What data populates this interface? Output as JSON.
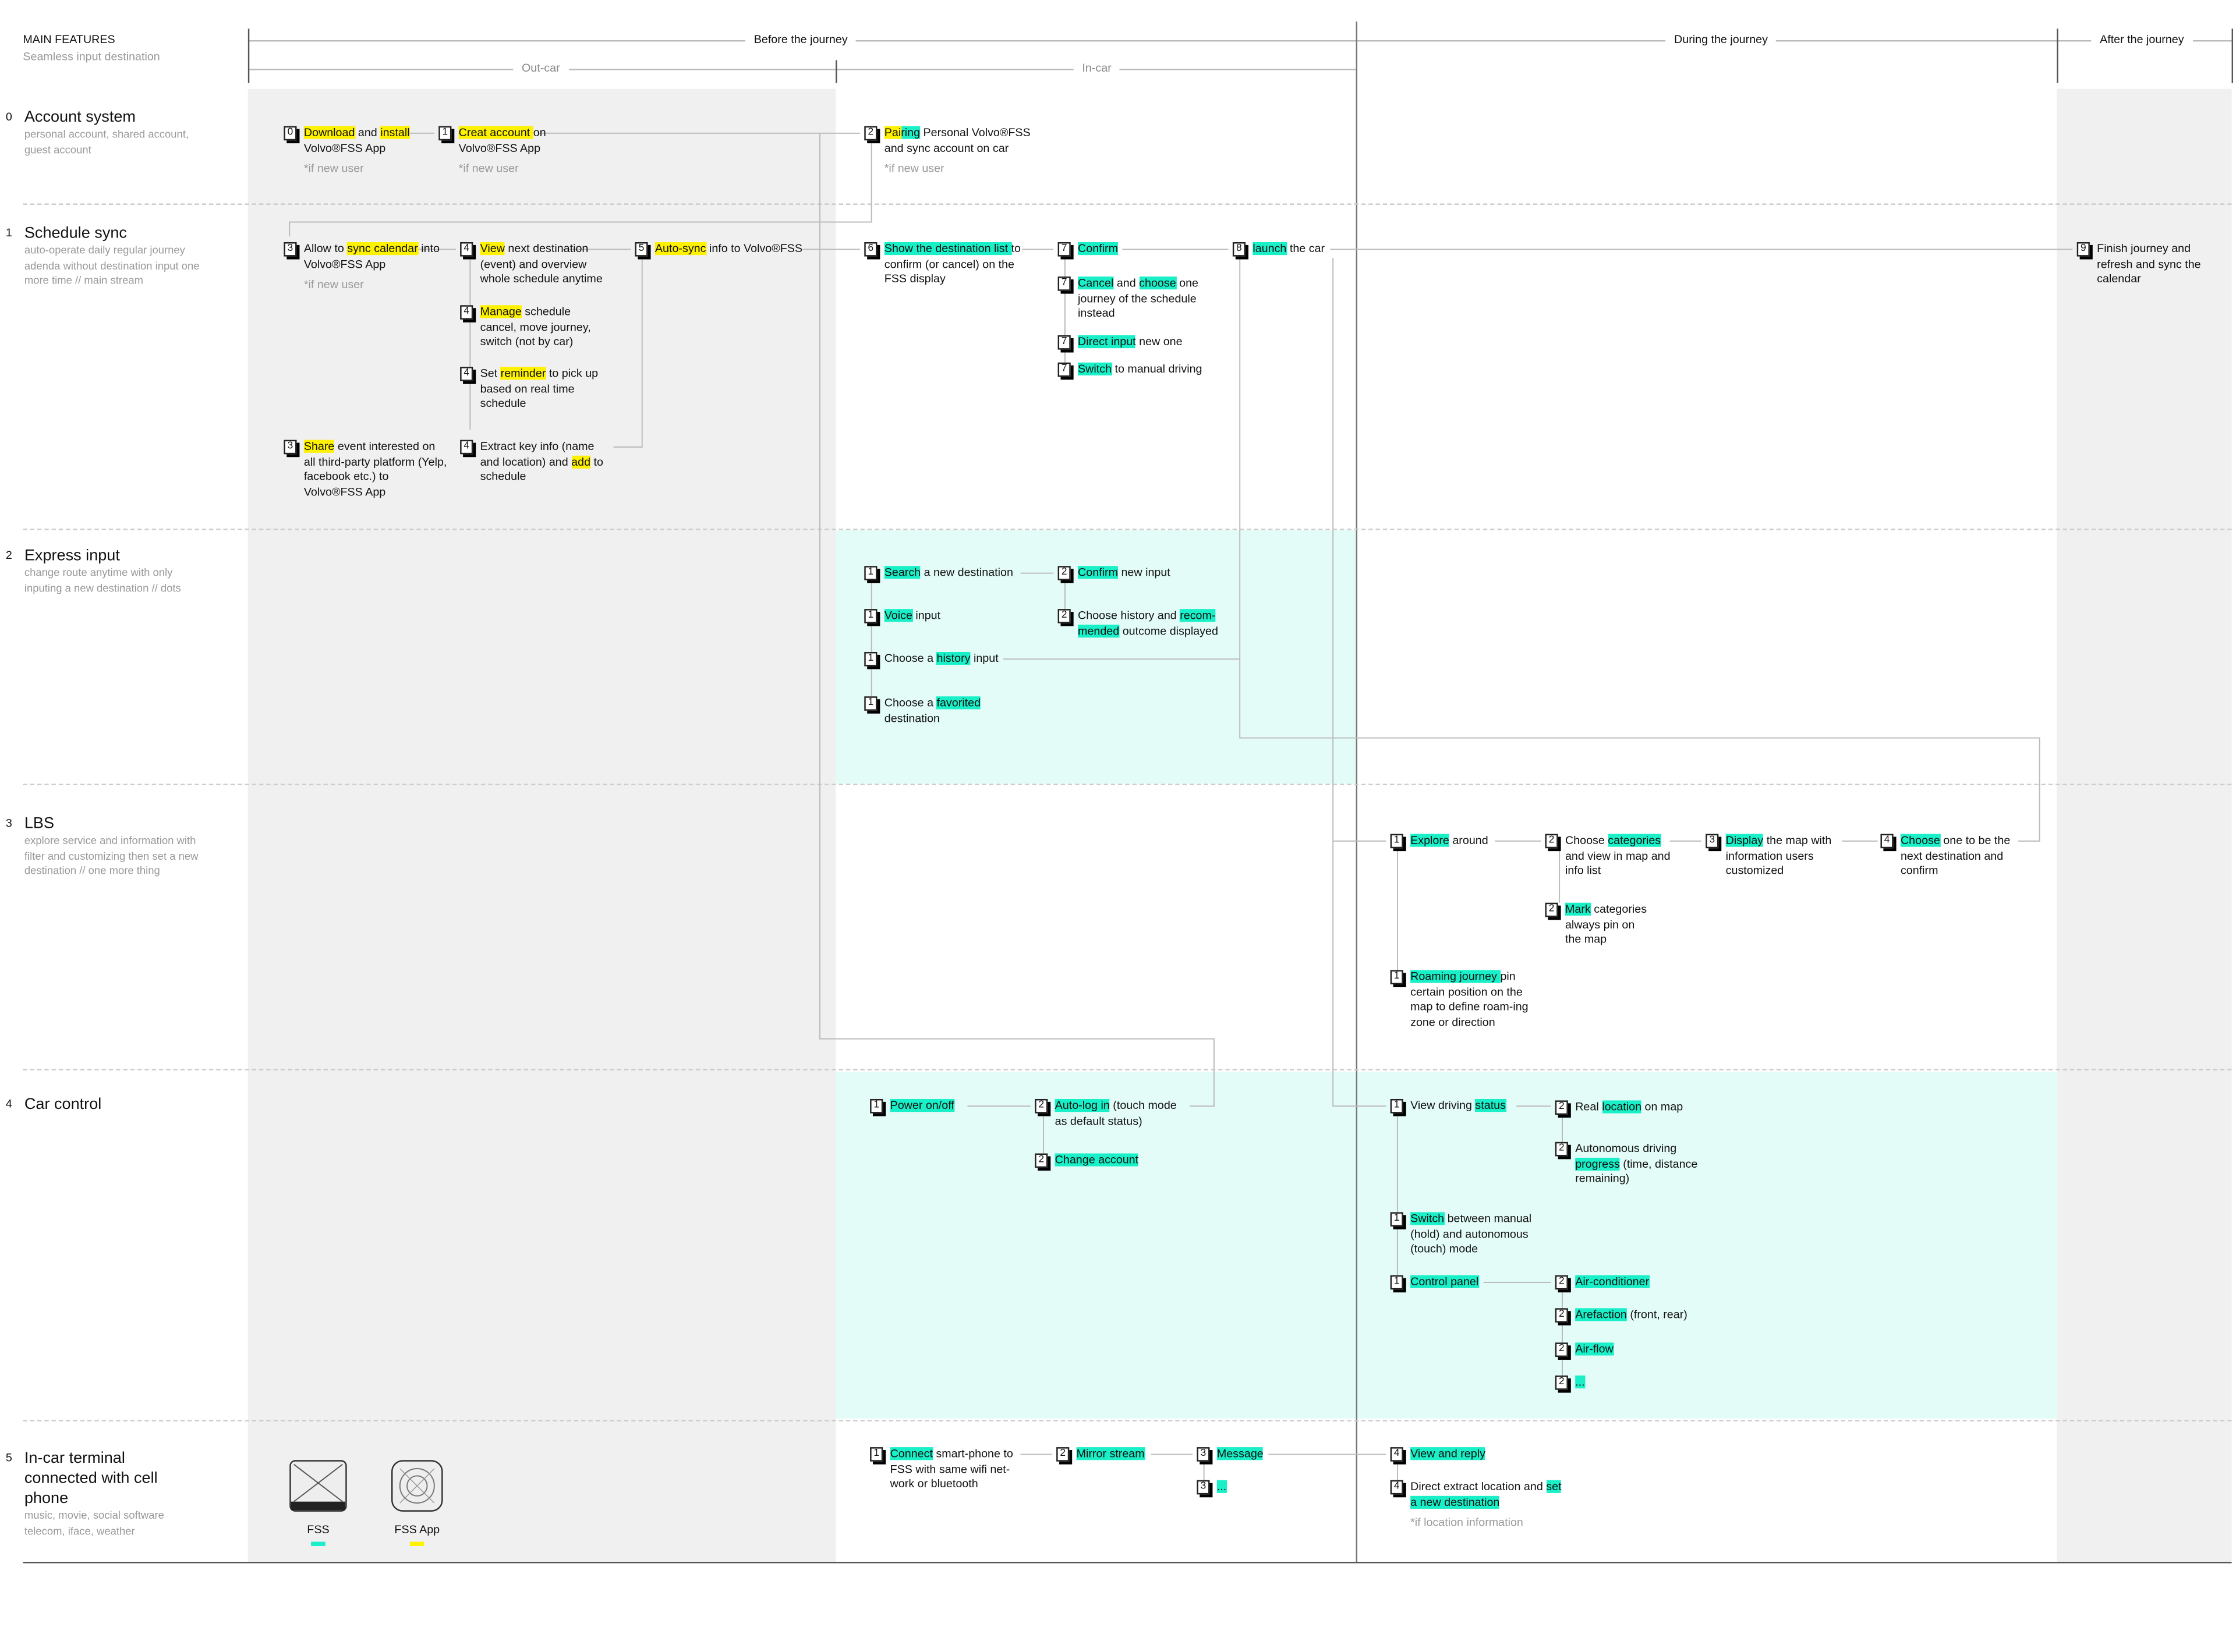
{
  "header": {
    "title": "MAIN FEATURES",
    "subtitle": "Seamless input destination",
    "phases": [
      "Before the journey",
      "During the journey",
      "After the journey"
    ],
    "subphases": [
      "Out-car",
      "In-car"
    ]
  },
  "colors": {
    "app_highlight": "#fff200",
    "fss_highlight": "#19f0c8",
    "outcar_bg": "#f0f0f0",
    "incar_bg": "#e3fcf7"
  },
  "rows": [
    {
      "num": "0",
      "title": "Account system",
      "desc": "personal account, shared account, guest account",
      "cards": [
        {
          "badge": "0",
          "segs": [
            {
              "t": "Download",
              "h": "y"
            },
            {
              "t": " and "
            },
            {
              "t": "install",
              "h": "y"
            },
            {
              "t": " Volvo®FSS App"
            }
          ],
          "note": "*if new user"
        },
        {
          "badge": "1",
          "segs": [
            {
              "t": "Creat account ",
              "h": "y"
            },
            {
              "t": " on Volvo®FSS App"
            }
          ],
          "note": "*if new user"
        },
        {
          "badge": "2",
          "segs": [
            {
              "t": "Pai",
              "h": "y"
            },
            {
              "t": "ring",
              "h": "g"
            },
            {
              "t": " Personal Volvo®FSS and sync account on car"
            }
          ],
          "note": "*if new user"
        }
      ]
    },
    {
      "num": "1",
      "title": "Schedule sync",
      "desc": "auto-operate daily regular journey adenda without destination input one more time // main stream",
      "cards": [
        {
          "badge": "3",
          "segs": [
            {
              "t": "Allow to "
            },
            {
              "t": "sync calendar",
              "h": "y"
            },
            {
              "t": " into Volvo®FSS App"
            }
          ],
          "note": "*if new user"
        },
        {
          "badge": "4",
          "segs": [
            {
              "t": "View",
              "h": "y"
            },
            {
              "t": " next destination (event) and overview whole schedule anytime"
            }
          ]
        },
        {
          "badge": "4",
          "segs": [
            {
              "t": "Manage",
              "h": "y"
            },
            {
              "t": " schedule cancel, move journey, switch (not by car)"
            }
          ]
        },
        {
          "badge": "4",
          "segs": [
            {
              "t": "Set "
            },
            {
              "t": "reminder",
              "h": "y"
            },
            {
              "t": " to pick up based on real time schedule"
            }
          ]
        },
        {
          "badge": "3",
          "segs": [
            {
              "t": "Share",
              "h": "y"
            },
            {
              "t": " event interested on all third-party platform (Yelp, facebook etc.) to Volvo®FSS App"
            }
          ]
        },
        {
          "badge": "4",
          "segs": [
            {
              "t": "Extract key info (name and location) and "
            },
            {
              "t": "add",
              "h": "y"
            },
            {
              "t": " to schedule"
            }
          ]
        },
        {
          "badge": "5",
          "segs": [
            {
              "t": "Auto-sync",
              "h": "y"
            },
            {
              "t": " info to Volvo®FSS"
            }
          ]
        },
        {
          "badge": "6",
          "segs": [
            {
              "t": "Show the destination list ",
              "h": "g"
            },
            {
              "t": " to confirm (or cancel) on the FSS display"
            }
          ]
        },
        {
          "badge": "7",
          "segs": [
            {
              "t": "Confirm",
              "h": "g"
            }
          ]
        },
        {
          "badge": "7",
          "segs": [
            {
              "t": "Cancel",
              "h": "g"
            },
            {
              "t": " and "
            },
            {
              "t": "choose",
              "h": "g"
            },
            {
              "t": " one journey of the schedule instead"
            }
          ]
        },
        {
          "badge": "7",
          "segs": [
            {
              "t": "Direct input",
              "h": "g"
            },
            {
              "t": " new one"
            }
          ]
        },
        {
          "badge": "7",
          "segs": [
            {
              "t": "Switch",
              "h": "g"
            },
            {
              "t": " to manual driving"
            }
          ]
        },
        {
          "badge": "8",
          "segs": [
            {
              "t": "launch",
              "h": "g"
            },
            {
              "t": " the car"
            }
          ]
        },
        {
          "badge": "9",
          "segs": [
            {
              "t": "Finish journey and refresh and sync the calendar"
            }
          ]
        }
      ]
    },
    {
      "num": "2",
      "title": "Express input",
      "desc": "change route anytime with only inputing a new destination // dots",
      "cards": [
        {
          "badge": "1",
          "segs": [
            {
              "t": "Search",
              "h": "g"
            },
            {
              "t": " a new destination"
            }
          ]
        },
        {
          "badge": "1",
          "segs": [
            {
              "t": "Voice",
              "h": "g"
            },
            {
              "t": " input"
            }
          ]
        },
        {
          "badge": "1",
          "segs": [
            {
              "t": "Choose a "
            },
            {
              "t": "history",
              "h": "g"
            },
            {
              "t": " input"
            }
          ]
        },
        {
          "badge": "1",
          "segs": [
            {
              "t": "Choose a "
            },
            {
              "t": "favorited",
              "h": "g"
            },
            {
              "t": " destination"
            }
          ]
        },
        {
          "badge": "2",
          "segs": [
            {
              "t": "Confirm",
              "h": "g"
            },
            {
              "t": " new input"
            }
          ]
        },
        {
          "badge": "2",
          "segs": [
            {
              "t": "Choose history and "
            },
            {
              "t": "recom-mended",
              "h": "g"
            },
            {
              "t": " outcome displayed"
            }
          ]
        }
      ]
    },
    {
      "num": "3",
      "title": "LBS",
      "desc": "explore service and information with filter and customizing then set a new destination // one more thing",
      "cards": [
        {
          "badge": "1",
          "segs": [
            {
              "t": "Explore",
              "h": "g"
            },
            {
              "t": " around"
            }
          ]
        },
        {
          "badge": "2",
          "segs": [
            {
              "t": "Choose "
            },
            {
              "t": "categories",
              "h": "g"
            },
            {
              "t": " and view in map and info list"
            }
          ]
        },
        {
          "badge": "2",
          "segs": [
            {
              "t": "Mark",
              "h": "g"
            },
            {
              "t": " categories always pin on the map"
            }
          ]
        },
        {
          "badge": "3",
          "segs": [
            {
              "t": "Display",
              "h": "g"
            },
            {
              "t": " the map with information users customized"
            }
          ]
        },
        {
          "badge": "4",
          "segs": [
            {
              "t": "Choose",
              "h": "g"
            },
            {
              "t": " one to be the next destination and confirm"
            }
          ]
        },
        {
          "badge": "1",
          "segs": [
            {
              "t": "Roaming journey ",
              "h": "g"
            },
            {
              "t": " pin certain position on the map to define roam-ing zone or direction"
            }
          ]
        }
      ]
    },
    {
      "num": "4",
      "title": "Car control",
      "desc": "",
      "cards": [
        {
          "badge": "1",
          "segs": [
            {
              "t": "Power on/off ",
              "h": "g"
            }
          ]
        },
        {
          "badge": "2",
          "segs": [
            {
              "t": "Auto-log in",
              "h": "g"
            },
            {
              "t": " (touch mode as default status)"
            }
          ]
        },
        {
          "badge": "2",
          "segs": [
            {
              "t": "Change account ",
              "h": "g"
            }
          ]
        },
        {
          "badge": "1",
          "segs": [
            {
              "t": "View driving "
            },
            {
              "t": "status",
              "h": "g"
            }
          ]
        },
        {
          "badge": "2",
          "segs": [
            {
              "t": "Real "
            },
            {
              "t": "location",
              "h": "g"
            },
            {
              "t": " on map"
            }
          ]
        },
        {
          "badge": "2",
          "segs": [
            {
              "t": "Autonomous driving "
            },
            {
              "t": "progress",
              "h": "g"
            },
            {
              "t": " (time, distance remaining)"
            }
          ]
        },
        {
          "badge": "1",
          "segs": [
            {
              "t": "Switch",
              "h": "g"
            },
            {
              "t": " between manual (hold) and autonomous (touch) mode"
            }
          ]
        },
        {
          "badge": "1",
          "segs": [
            {
              "t": "Control panel ",
              "h": "g"
            }
          ]
        },
        {
          "badge": "2",
          "segs": [
            {
              "t": "Air-conditioner ",
              "h": "g"
            }
          ]
        },
        {
          "badge": "2",
          "segs": [
            {
              "t": "Arefaction",
              "h": "g"
            },
            {
              "t": " (front, rear)"
            }
          ]
        },
        {
          "badge": "2",
          "segs": [
            {
              "t": "Air-flow ",
              "h": "g"
            }
          ]
        },
        {
          "badge": "2",
          "segs": [
            {
              "t": "...",
              "h": "g"
            }
          ]
        }
      ]
    },
    {
      "num": "5",
      "title": "In-car terminal connected with cell phone",
      "desc": "music, movie, social software telecom, iface, weather",
      "cards": [
        {
          "badge": "1",
          "segs": [
            {
              "t": "Connect",
              "h": "g"
            },
            {
              "t": " smart-phone to FSS with same wifi net-work or bluetooth"
            }
          ]
        },
        {
          "badge": "2",
          "segs": [
            {
              "t": "Mirror stream ",
              "h": "g"
            }
          ]
        },
        {
          "badge": "3",
          "segs": [
            {
              "t": "Message ",
              "h": "g"
            }
          ]
        },
        {
          "badge": "3",
          "segs": [
            {
              "t": "...",
              "h": "g"
            }
          ]
        },
        {
          "badge": "4",
          "segs": [
            {
              "t": "View and reply ",
              "h": "g"
            }
          ]
        },
        {
          "badge": "4",
          "segs": [
            {
              "t": "Direct extract location and "
            },
            {
              "t": "set a new destination ",
              "h": "g"
            }
          ],
          "note": "*if location information"
        }
      ]
    }
  ],
  "legend": [
    {
      "label": "FSS",
      "icon": "fss-display-icon",
      "color": "#19f0c8"
    },
    {
      "label": "FSS App",
      "icon": "fss-app-icon",
      "color": "#fff200"
    }
  ]
}
